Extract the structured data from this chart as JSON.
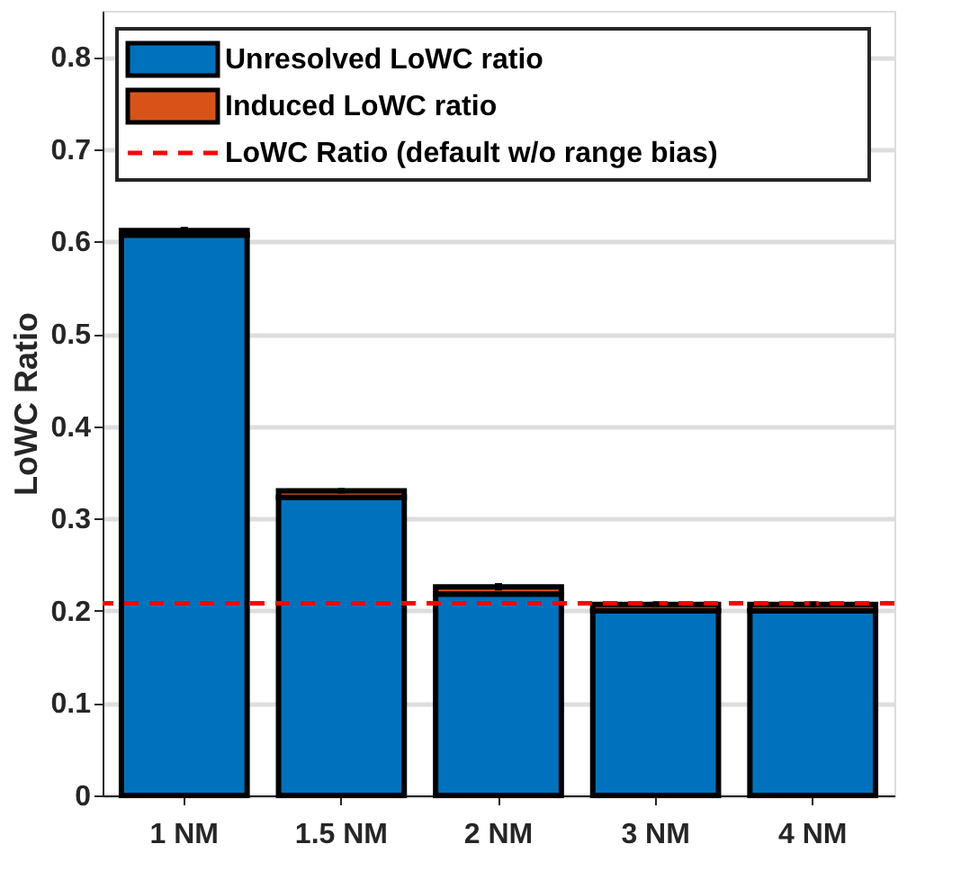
{
  "chart_data": {
    "type": "bar",
    "stacked": true,
    "ylabel": "LoWC Ratio",
    "categories": [
      "1 NM",
      "1.5 NM",
      "2 NM",
      "3 NM",
      "4 NM"
    ],
    "series": [
      {
        "name": "Unresolved LoWC ratio",
        "color": "#0072bd",
        "values": [
          0.607,
          0.323,
          0.218,
          0.2,
          0.2
        ]
      },
      {
        "name": "Induced LoWC ratio",
        "color": "#d95319",
        "values": [
          0.005,
          0.007,
          0.008,
          0.007,
          0.007
        ],
        "errors": [
          0.004,
          0.003,
          0.004,
          0.003,
          0.003
        ]
      }
    ],
    "ref_lines": [
      {
        "axis": "y",
        "value": 0.208,
        "label": "LoWC Ratio (default w/o range bias)",
        "color": "#ff0000",
        "line_style": "dashed"
      }
    ],
    "ylim": [
      0,
      0.85
    ],
    "yticks": [
      0,
      0.1,
      0.2,
      0.3,
      0.4,
      0.5,
      0.6,
      0.7,
      0.8
    ],
    "grid": "y",
    "legend": "top left"
  }
}
